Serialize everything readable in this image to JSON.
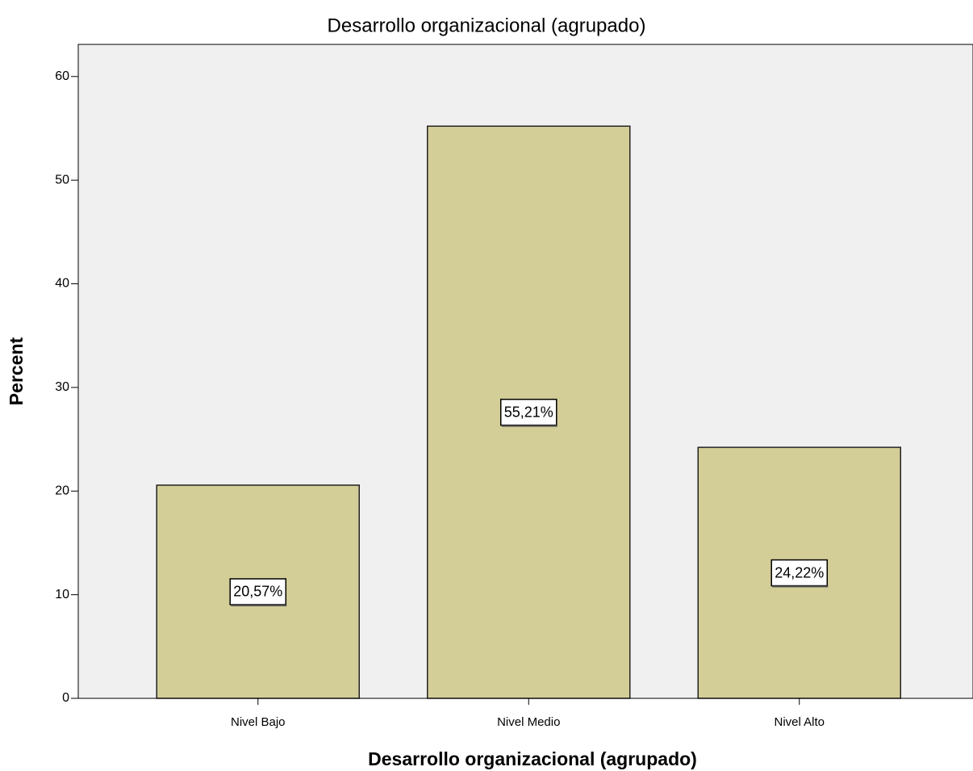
{
  "chart_data": {
    "type": "bar",
    "title": "Desarrollo organizacional (agrupado)",
    "x_label": "Desarrollo organizacional (agrupado)",
    "y_label": "Percent",
    "categories": [
      "Nivel Bajo",
      "Nivel Medio",
      "Nivel Alto"
    ],
    "values": [
      20.57,
      55.21,
      24.22
    ],
    "value_labels": [
      "20,57%",
      "55,21%",
      "24,22%"
    ],
    "color": "#d3ce97",
    "ylim": [
      0,
      63.1
    ],
    "yticks": [
      0,
      10,
      20,
      30,
      40,
      50,
      60
    ],
    "grid": false
  }
}
